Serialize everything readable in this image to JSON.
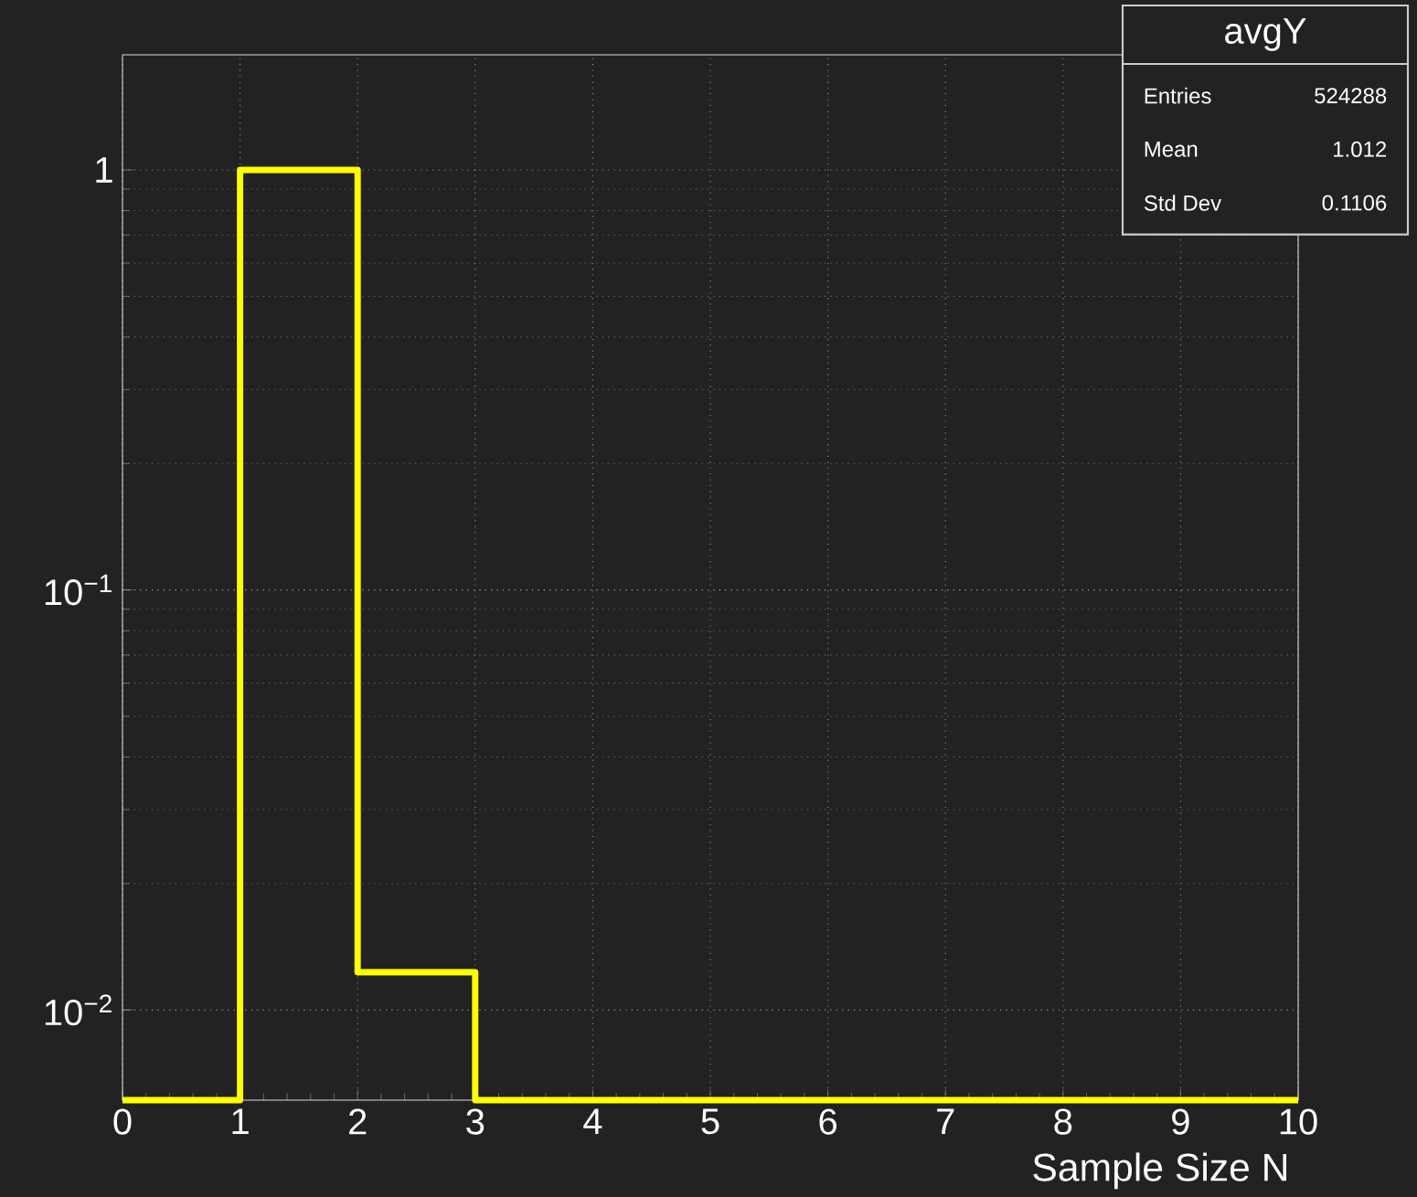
{
  "chart_data": {
    "type": "histogram",
    "xlabel": "Sample Size N",
    "color": "#ffff00",
    "bins": [
      0,
      1,
      2,
      3,
      4,
      5,
      6,
      7,
      8,
      9,
      10
    ],
    "values": [
      null,
      1,
      0.0123,
      null,
      null,
      null,
      null,
      null,
      null,
      null
    ],
    "log": "y",
    "grid": true,
    "xlim": [
      0,
      10
    ],
    "xticks": [
      0,
      1,
      2,
      3,
      4,
      5,
      6,
      7,
      8,
      9,
      10
    ],
    "ylim": [
      0.0061,
      1.88
    ],
    "yticks": [
      {
        "value": 0.01,
        "label": "10$^{−2}$"
      },
      {
        "value": 0.1,
        "label": "10$^{−1}$"
      },
      1
    ],
    "annotations": [
      "avgY",
      "Entries",
      "524288",
      "Mean",
      "1.012",
      "Std Dev",
      "0.1106"
    ]
  }
}
